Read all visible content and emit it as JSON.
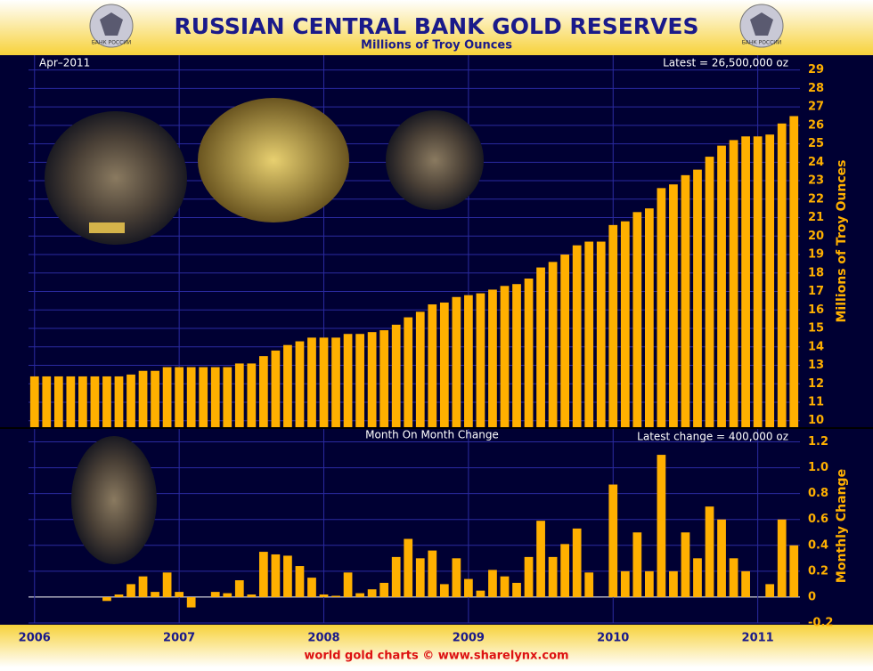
{
  "title": "RUSSIAN CENTRAL BANK GOLD RESERVES",
  "subtitle": "Millions of Troy Ounces",
  "emblem_text": "БАНК РОССИИ",
  "footer": "world gold charts © www.sharelynx.com",
  "chart_data": [
    {
      "type": "bar",
      "date_note": "Apr–2011",
      "annotation": "Latest = 26,500,000 oz",
      "y_label": "Millions of Troy Ounces",
      "color": "#ffb000",
      "ylim": [
        9.65,
        29.8
      ],
      "yticks": [
        10,
        11,
        12,
        13,
        14,
        15,
        16,
        17,
        18,
        19,
        20,
        21,
        22,
        23,
        24,
        25,
        26,
        27,
        28,
        29
      ],
      "grid": true,
      "values": [
        12.4,
        12.4,
        12.4,
        12.4,
        12.4,
        12.4,
        12.4,
        12.4,
        12.5,
        12.7,
        12.7,
        12.9,
        12.9,
        12.9,
        12.9,
        12.9,
        12.9,
        13.1,
        13.1,
        13.5,
        13.8,
        14.1,
        14.3,
        14.5,
        14.5,
        14.5,
        14.7,
        14.7,
        14.8,
        14.9,
        15.2,
        15.6,
        15.9,
        16.3,
        16.4,
        16.7,
        16.8,
        16.9,
        17.1,
        17.3,
        17.4,
        17.7,
        18.3,
        18.6,
        19.0,
        19.5,
        19.7,
        19.7,
        20.6,
        20.8,
        21.3,
        21.5,
        22.6,
        22.8,
        23.3,
        23.6,
        24.3,
        24.9,
        25.2,
        25.4,
        25.4,
        25.5,
        26.1,
        26.5
      ]
    },
    {
      "type": "bar",
      "title": "Month On Month Change",
      "annotation": "Latest change = 400,000 oz",
      "y_label": "Monthly Change",
      "color": "#ffb000",
      "ylim": [
        -0.2,
        1.3
      ],
      "yticks": [
        -0.2,
        0,
        0.2,
        0.4,
        0.6,
        0.8,
        {
          "value": 1,
          "label": "1.0"
        },
        1.2
      ],
      "grid": true,
      "categories": [
        "2006",
        null,
        null,
        null,
        null,
        null,
        null,
        null,
        null,
        null,
        null,
        null,
        "2007",
        null,
        null,
        null,
        null,
        null,
        null,
        null,
        null,
        null,
        null,
        null,
        "2008",
        null,
        null,
        null,
        null,
        null,
        null,
        null,
        null,
        null,
        null,
        null,
        "2009",
        null,
        null,
        null,
        null,
        null,
        null,
        null,
        null,
        null,
        null,
        null,
        "2010",
        null,
        null,
        null,
        null,
        null,
        null,
        null,
        null,
        null,
        null,
        null,
        "2011",
        null,
        null,
        null
      ],
      "values": [
        0,
        0,
        0,
        0,
        0,
        0,
        -0.03,
        0.02,
        0.1,
        0.16,
        0.04,
        0.19,
        0.04,
        -0.08,
        0,
        0.04,
        0.03,
        0.13,
        0.02,
        0.35,
        0.33,
        0.32,
        0.24,
        0.15,
        0.02,
        0.01,
        0.19,
        0.03,
        0.06,
        0.11,
        0.31,
        0.45,
        0.3,
        0.36,
        0.1,
        0.3,
        0.14,
        0.05,
        0.21,
        0.16,
        0.11,
        0.31,
        0.59,
        0.31,
        0.41,
        0.53,
        0.19,
        0,
        0.87,
        0.2,
        0.5,
        0.2,
        1.1,
        0.2,
        0.5,
        0.3,
        0.7,
        0.6,
        0.3,
        0.2,
        0,
        0.1,
        0.6,
        0.4
      ]
    }
  ]
}
